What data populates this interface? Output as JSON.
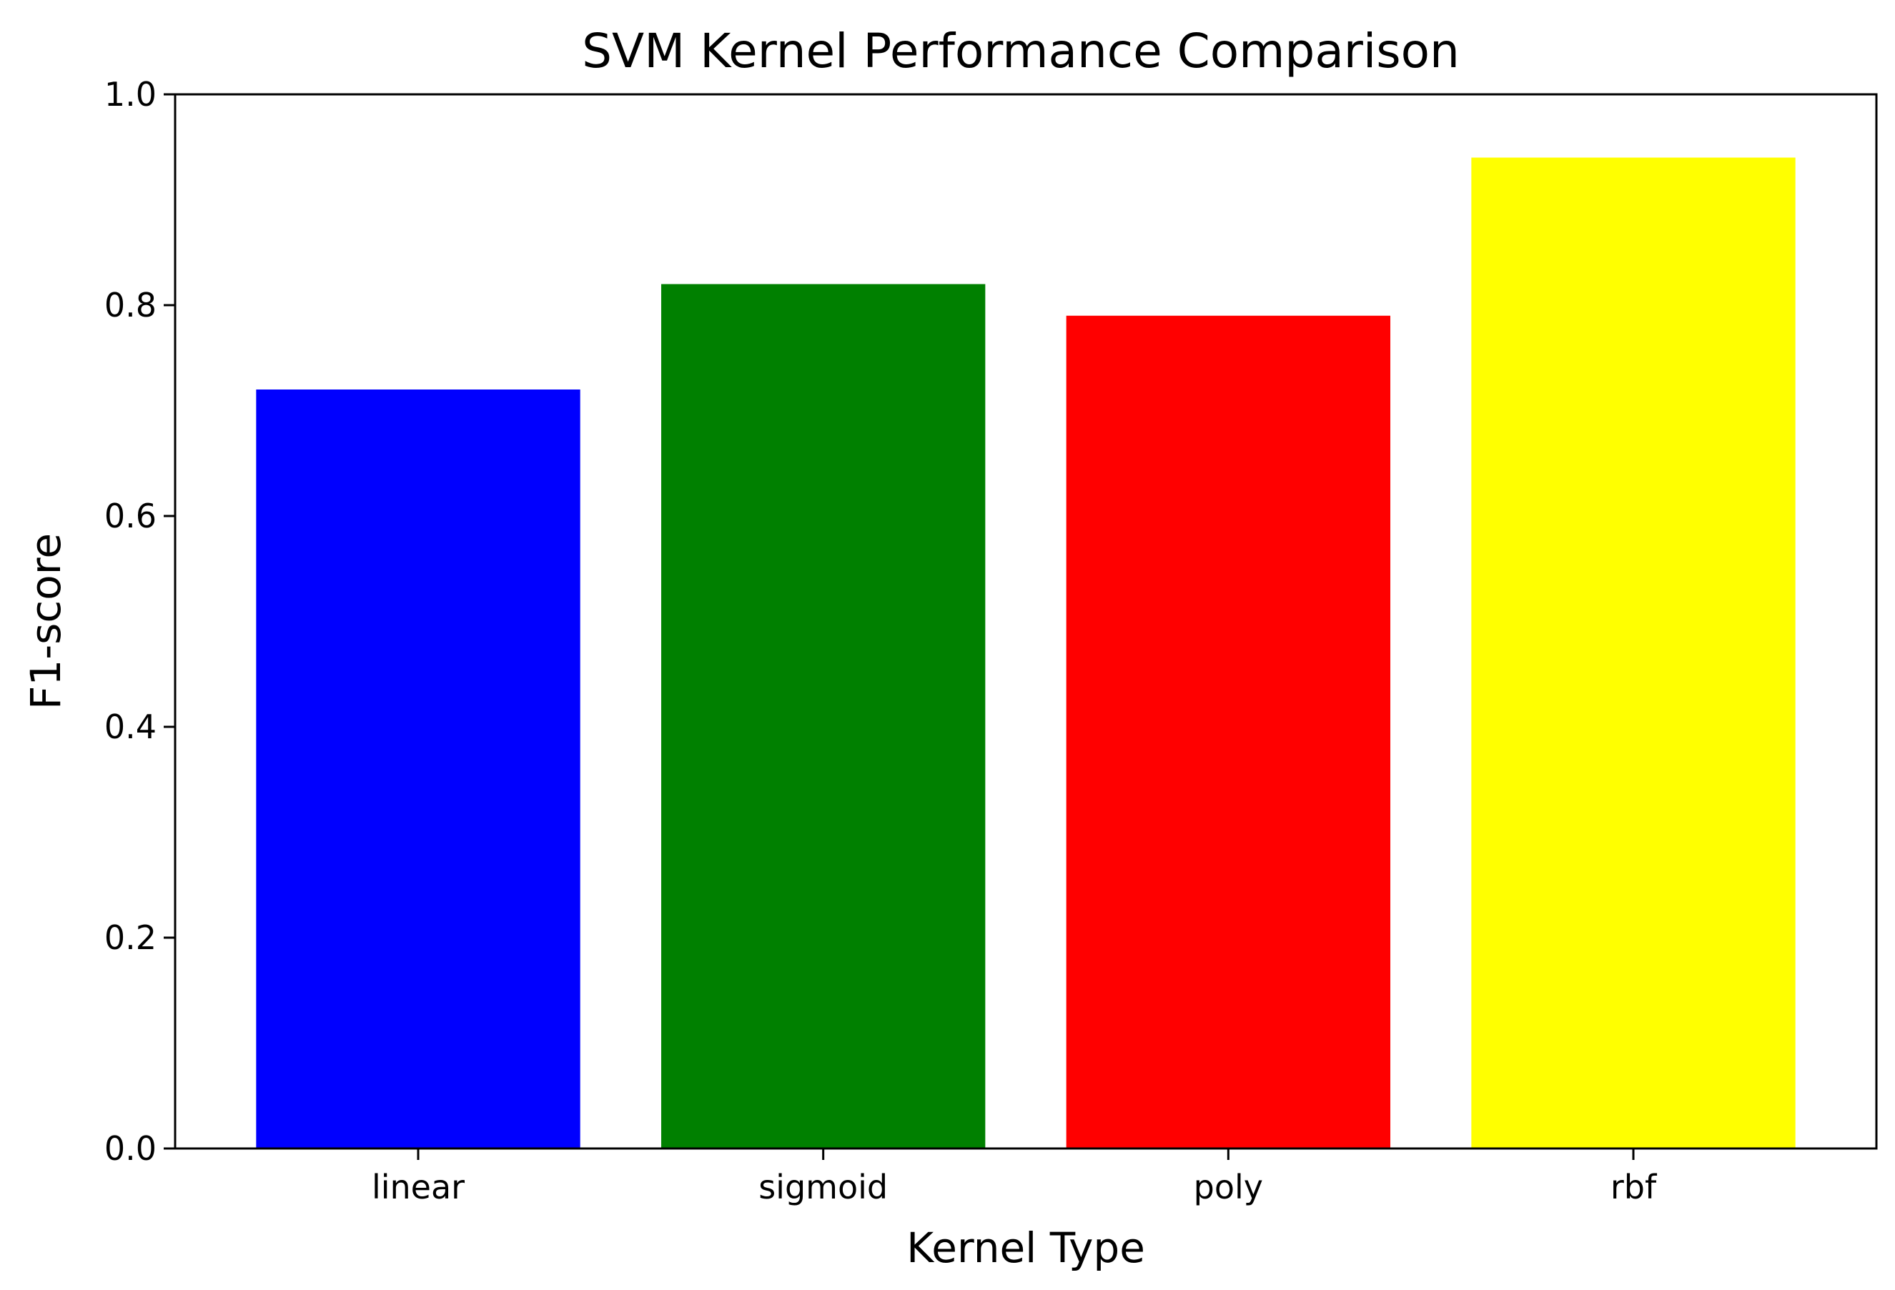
{
  "chart_data": {
    "type": "bar",
    "title": "SVM Kernel Performance Comparison",
    "xlabel": "Kernel Type",
    "ylabel": "F1-score",
    "categories": [
      "linear",
      "sigmoid",
      "poly",
      "rbf"
    ],
    "values": [
      0.72,
      0.82,
      0.79,
      0.94
    ],
    "colors": [
      "#0000ff",
      "#008000",
      "#ff0000",
      "#ffff00"
    ],
    "ylim": [
      0.0,
      1.0
    ],
    "yticks": [
      "0.0",
      "0.2",
      "0.4",
      "0.6",
      "0.8",
      "1.0"
    ],
    "grid": false,
    "legend": "none"
  }
}
